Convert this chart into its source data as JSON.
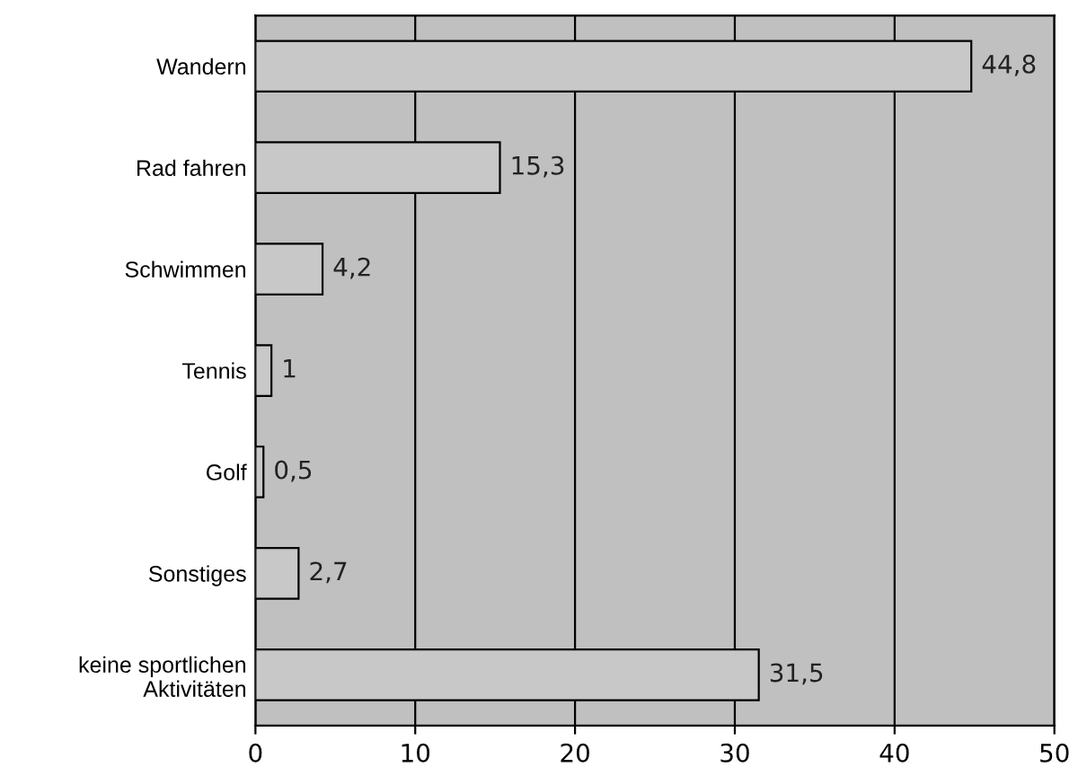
{
  "chart_data": {
    "type": "bar",
    "orientation": "horizontal",
    "categories": [
      "Wandern",
      "Rad fahren",
      "Schwimmen",
      "Tennis",
      "Golf",
      "Sonstiges",
      "keine sportlichen\nAktivitäten"
    ],
    "values": [
      44.8,
      15.3,
      4.2,
      1,
      0.5,
      2.7,
      31.5
    ],
    "value_labels": [
      "44,8",
      "15,3",
      "4,2",
      "1",
      "0,5",
      "2,7",
      "31,5"
    ],
    "color": "#c8c8c8",
    "xlim": [
      0,
      50
    ],
    "xticks": [
      0,
      10,
      20,
      30,
      40,
      50
    ],
    "grid": "x"
  }
}
